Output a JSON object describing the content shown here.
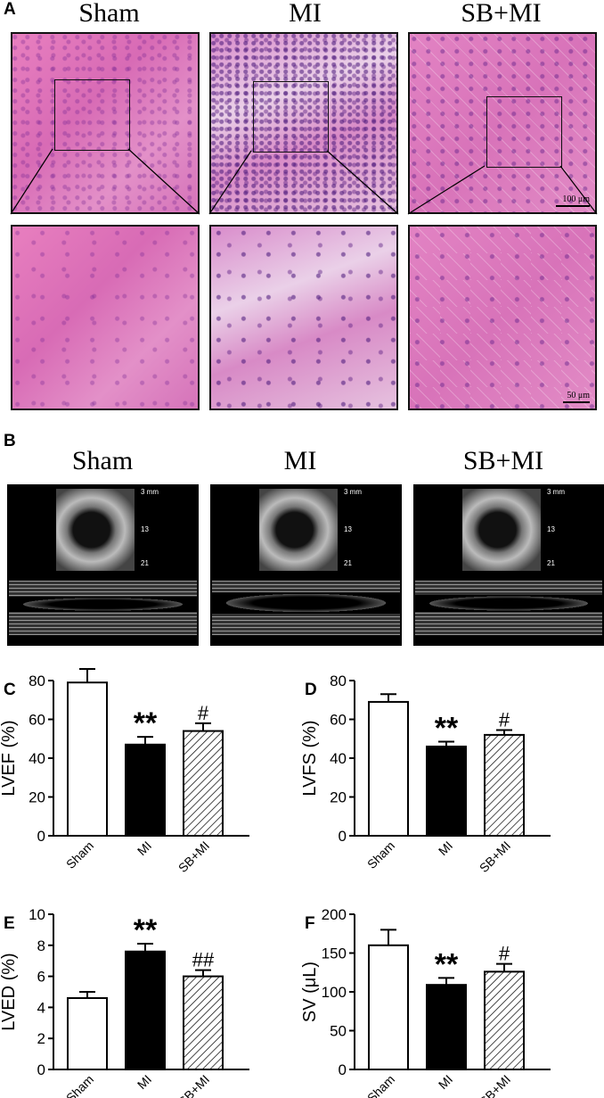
{
  "panels": {
    "A": "A",
    "B": "B",
    "C": "C",
    "D": "D",
    "E": "E",
    "F": "F"
  },
  "histology": {
    "groups": [
      "Sham",
      "MI",
      "SB+MI"
    ],
    "scale_top": "100 μm",
    "scale_bottom": "50 μm"
  },
  "echo": {
    "groups": [
      "Sham",
      "MI",
      "SB+MI"
    ],
    "depth_labels": [
      "3 mm",
      "13",
      "21"
    ]
  },
  "colors": {
    "sham": "#ffffff",
    "mi": "#000000",
    "sbmi": "hatched",
    "stroke": "#000000"
  },
  "chart_data": [
    {
      "type": "bar",
      "panel": "C",
      "categories": [
        "Sham",
        "MI",
        "SB+MI"
      ],
      "values": [
        79,
        47,
        54
      ],
      "errors": [
        7,
        4,
        4
      ],
      "annotations": [
        "",
        "**",
        "#"
      ],
      "ylabel": "LVEF (%)",
      "ylim": [
        0,
        80
      ],
      "yticks": [
        0,
        20,
        40,
        60,
        80
      ]
    },
    {
      "type": "bar",
      "panel": "D",
      "categories": [
        "Sham",
        "MI",
        "SB+MI"
      ],
      "values": [
        69,
        46,
        52
      ],
      "errors": [
        4,
        2.5,
        2.5
      ],
      "annotations": [
        "",
        "**",
        "#"
      ],
      "ylabel": "LVFS (%)",
      "ylim": [
        0,
        80
      ],
      "yticks": [
        0,
        20,
        40,
        60,
        80
      ]
    },
    {
      "type": "bar",
      "panel": "E",
      "categories": [
        "Sham",
        "MI",
        "SB+MI"
      ],
      "values": [
        4.6,
        7.6,
        6.0
      ],
      "errors": [
        0.4,
        0.5,
        0.4
      ],
      "annotations": [
        "",
        "**",
        "##"
      ],
      "ylabel": "LVED (%)",
      "ylim": [
        0,
        10
      ],
      "yticks": [
        0,
        2,
        4,
        6,
        8,
        10
      ]
    },
    {
      "type": "bar",
      "panel": "F",
      "categories": [
        "Sham",
        "MI",
        "SB+MI"
      ],
      "values": [
        160,
        109,
        126
      ],
      "errors": [
        20,
        9,
        10
      ],
      "annotations": [
        "",
        "**",
        "#"
      ],
      "ylabel": "SV (μL)",
      "ylim": [
        0,
        200
      ],
      "yticks": [
        0,
        50,
        100,
        150,
        200
      ]
    }
  ]
}
